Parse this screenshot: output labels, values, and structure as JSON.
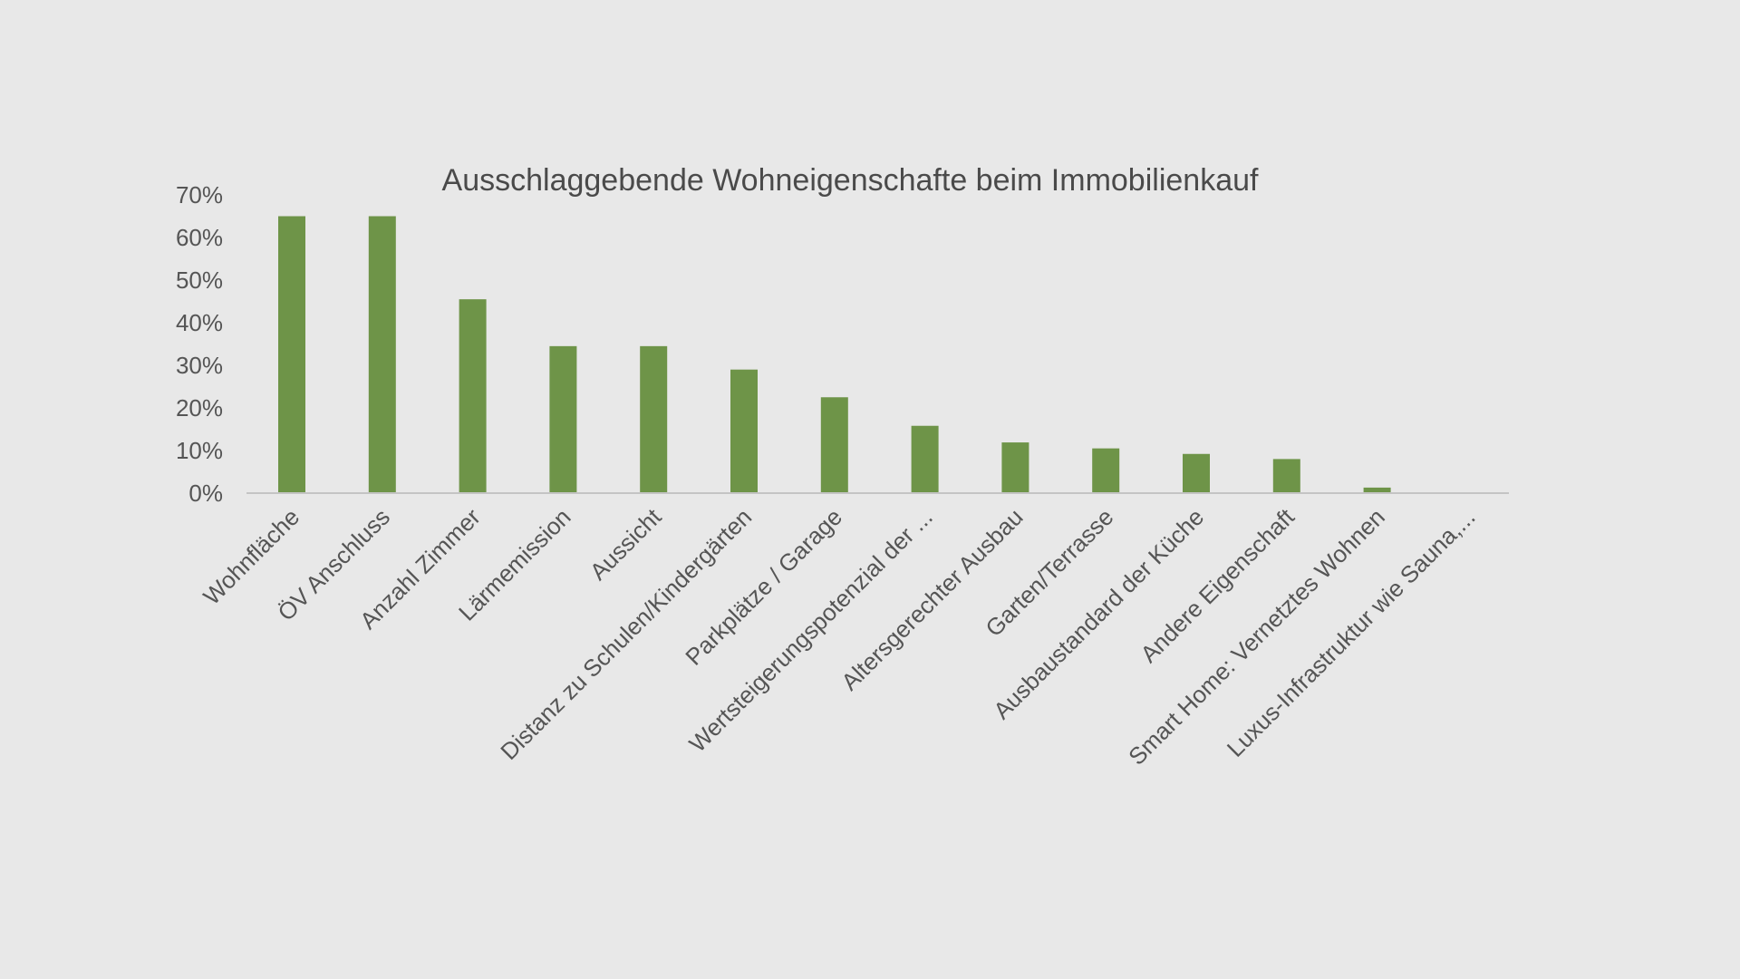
{
  "chart_data": {
    "type": "bar",
    "title": "Ausschlaggebende Wohneigenschafte beim Immobilienkauf",
    "xlabel": "",
    "ylabel": "",
    "ylim": [
      0,
      70
    ],
    "yticks": [
      "0%",
      "10%",
      "20%",
      "30%",
      "40%",
      "50%",
      "60%",
      "70%"
    ],
    "grid": false,
    "legend": "none",
    "categories": [
      "Wohnfläche",
      "ÖV Anschluss",
      "Anzahl Zimmer",
      "Lärmemission",
      "Aussicht",
      "Distanz zu Schulen/Kindergärten",
      "Parkplätze / Garage",
      "Wertsteigerungspotenzial der ...",
      "Altersgerechter Ausbau",
      "Garten/Terrasse",
      "Ausbaustandard der Küche",
      "Andere Eigenschaft",
      "Smart Home: Vernetztes Wohnen",
      "Luxus-Infrastruktur wie Sauna,..."
    ],
    "values": [
      65,
      65,
      45.5,
      34.5,
      34.5,
      29,
      22.5,
      15.8,
      11.9,
      10.5,
      9.2,
      8.0,
      1.3,
      0
    ],
    "bar_color": "#6e9448",
    "axis_color": "#c4c4c4"
  }
}
